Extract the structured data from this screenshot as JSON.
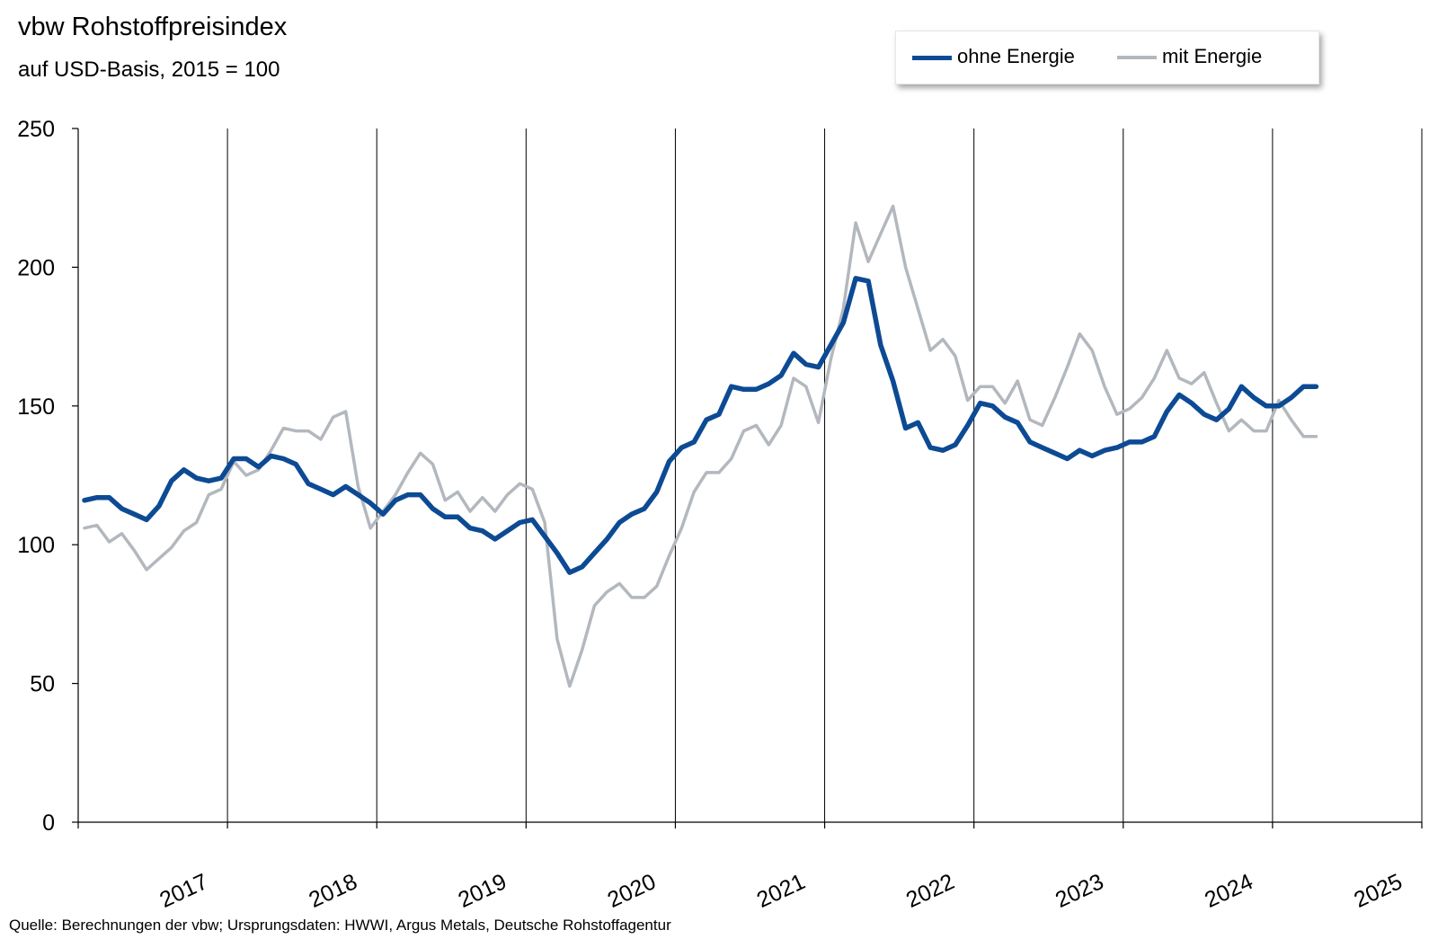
{
  "title": "vbw Rohstoffpreisindex",
  "subtitle": "auf USD-Basis, 2015 = 100",
  "source": "Quelle: Berechnungen der vbw; Ursprungsdaten: HWWI, Argus Metals, Deutsche Rohstoffagentur",
  "colors": {
    "ohne": "#0d4a94",
    "mit": "#b3b8be",
    "grid": "#000000"
  },
  "chart_data": {
    "type": "line",
    "title": "vbw Rohstoffpreisindex",
    "subtitle": "auf USD-Basis, 2015 = 100",
    "xlabel": "",
    "ylabel": "",
    "ylim": [
      0,
      250
    ],
    "yticks": [
      0,
      50,
      100,
      150,
      200,
      250
    ],
    "xlim": [
      2016,
      2025
    ],
    "xtick_labels": [
      "2017",
      "2018",
      "2019",
      "2020",
      "2021",
      "2022",
      "2023",
      "2024",
      "2025"
    ],
    "grid": "vertical",
    "legend_position": "top-right",
    "x": [
      2016.042,
      2016.125,
      2016.208,
      2016.292,
      2016.375,
      2016.458,
      2016.542,
      2016.625,
      2016.708,
      2016.792,
      2016.875,
      2016.958,
      2017.042,
      2017.125,
      2017.208,
      2017.292,
      2017.375,
      2017.458,
      2017.542,
      2017.625,
      2017.708,
      2017.792,
      2017.875,
      2017.958,
      2018.042,
      2018.125,
      2018.208,
      2018.292,
      2018.375,
      2018.458,
      2018.542,
      2018.625,
      2018.708,
      2018.792,
      2018.875,
      2018.958,
      2019.042,
      2019.125,
      2019.208,
      2019.292,
      2019.375,
      2019.458,
      2019.542,
      2019.625,
      2019.708,
      2019.792,
      2019.875,
      2019.958,
      2020.042,
      2020.125,
      2020.208,
      2020.292,
      2020.375,
      2020.458,
      2020.542,
      2020.625,
      2020.708,
      2020.792,
      2020.875,
      2020.958,
      2021.042,
      2021.125,
      2021.208,
      2021.292,
      2021.375,
      2021.458,
      2021.542,
      2021.625,
      2021.708,
      2021.792,
      2021.875,
      2021.958,
      2022.042,
      2022.125,
      2022.208,
      2022.292,
      2022.375,
      2022.458,
      2022.542,
      2022.625,
      2022.708,
      2022.792,
      2022.875,
      2022.958,
      2023.042,
      2023.125,
      2023.208,
      2023.292,
      2023.375,
      2023.458,
      2023.542,
      2023.625,
      2023.708,
      2023.792,
      2023.875,
      2023.958,
      2024.042,
      2024.125,
      2024.208,
      2024.292
    ],
    "series": [
      {
        "name": "ohne Energie",
        "values": [
          116,
          117,
          117,
          113,
          111,
          109,
          114,
          123,
          127,
          124,
          123,
          124,
          131,
          131,
          128,
          132,
          131,
          129,
          122,
          120,
          118,
          121,
          118,
          115,
          111,
          116,
          118,
          118,
          113,
          110,
          110,
          106,
          105,
          102,
          105,
          108,
          109,
          103,
          97,
          90,
          92,
          97,
          102,
          108,
          111,
          113,
          119,
          130,
          135,
          137,
          145,
          147,
          157,
          156,
          156,
          158,
          161,
          169,
          165,
          164,
          172,
          180,
          196,
          195,
          172,
          159,
          142,
          144,
          135,
          134,
          136,
          143,
          151,
          150,
          146,
          144,
          137,
          135,
          133,
          131,
          134,
          132,
          134,
          135,
          137,
          137,
          139,
          148,
          154,
          151,
          147,
          145,
          149,
          157,
          153,
          150,
          150,
          153,
          157,
          157
        ]
      },
      {
        "name": "mit Energie",
        "values": [
          106,
          107,
          101,
          104,
          98,
          91,
          95,
          99,
          105,
          108,
          118,
          120,
          130,
          125,
          127,
          134,
          142,
          141,
          141,
          138,
          146,
          148,
          121,
          106,
          112,
          118,
          126,
          133,
          129,
          116,
          119,
          112,
          117,
          112,
          118,
          122,
          120,
          108,
          66,
          49,
          62,
          78,
          83,
          86,
          81,
          81,
          85,
          96,
          106,
          119,
          126,
          126,
          131,
          141,
          143,
          136,
          143,
          160,
          157,
          144,
          167,
          185,
          216,
          202,
          212,
          222,
          200,
          185,
          170,
          174,
          168,
          152,
          157,
          157,
          151,
          159,
          145,
          143,
          153,
          164,
          176,
          170,
          157,
          147,
          149,
          153,
          160,
          170,
          160,
          158,
          162,
          151,
          141,
          145,
          141,
          141,
          152,
          145,
          139,
          139
        ]
      }
    ]
  }
}
